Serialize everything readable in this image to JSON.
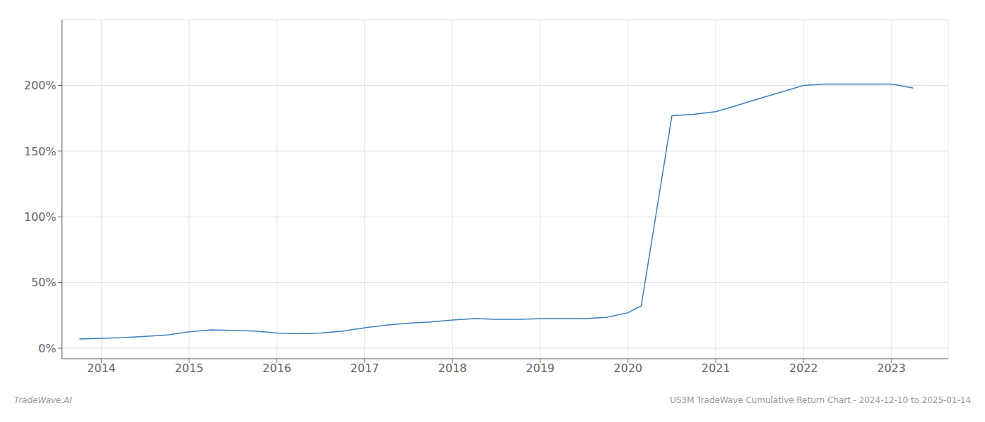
{
  "chart_data": {
    "type": "line",
    "x": [
      2013.75,
      2014.0,
      2014.25,
      2014.5,
      2014.75,
      2015.0,
      2015.25,
      2015.5,
      2015.75,
      2016.0,
      2016.25,
      2016.5,
      2016.75,
      2017.0,
      2017.25,
      2017.5,
      2017.75,
      2018.0,
      2018.25,
      2018.5,
      2018.75,
      2019.0,
      2019.25,
      2019.5,
      2019.75,
      2020.0,
      2020.08,
      2020.15,
      2020.5,
      2020.75,
      2021.0,
      2021.25,
      2021.5,
      2021.75,
      2022.0,
      2022.25,
      2022.5,
      2022.75,
      2023.0,
      2023.25
    ],
    "values": [
      0.07,
      0.075,
      0.08,
      0.09,
      0.1,
      0.125,
      0.14,
      0.135,
      0.13,
      0.115,
      0.11,
      0.115,
      0.13,
      0.155,
      0.175,
      0.19,
      0.2,
      0.215,
      0.225,
      0.22,
      0.22,
      0.225,
      0.225,
      0.225,
      0.235,
      0.27,
      0.3,
      0.32,
      1.77,
      1.78,
      1.8,
      1.85,
      1.9,
      1.95,
      2.0,
      2.01,
      2.01,
      2.01,
      2.01,
      1.98
    ],
    "color": "#3a7ebf",
    "xlim": [
      2013.55,
      2023.65
    ],
    "xticks": [
      2014,
      2015,
      2016,
      2017,
      2018,
      2019,
      2020,
      2021,
      2022,
      2023
    ],
    "ylim": [
      -0.08,
      2.5
    ],
    "yticks": [
      {
        "value": 0,
        "label": "0%"
      },
      {
        "value": 0.5,
        "label": "50%"
      },
      {
        "value": 1.0,
        "label": "100%"
      },
      {
        "value": 1.5,
        "label": "150%"
      },
      {
        "value": 2.0,
        "label": "200%"
      }
    ],
    "grid": true,
    "annotations": [
      "TradeWave.AI",
      "US3M TradeWave Cumulative Return Chart - 2024-12-10 to 2025-01-14"
    ]
  }
}
